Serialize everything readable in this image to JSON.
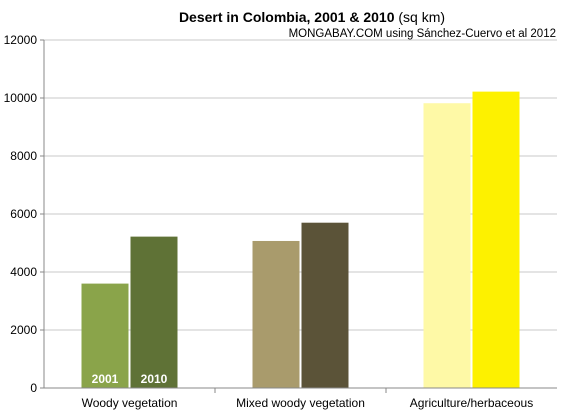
{
  "chart_data": {
    "type": "bar",
    "title_bold": "Desert in Colombia, 2001 & 2010",
    "title_normal": " (sq km)",
    "subtitle": "MONGABAY.COM using Sánchez-Cuervo et al 2012",
    "xlabel": "",
    "ylabel": "",
    "ylim": [
      0,
      12000
    ],
    "yticks": [
      0,
      2000,
      4000,
      6000,
      8000,
      10000,
      12000
    ],
    "grid": true,
    "legend": "none",
    "categories": [
      "Woody vegetation",
      "Mixed woody vegetation",
      "Agriculture/herbaceous"
    ],
    "series": [
      {
        "name": "2001",
        "values": [
          3600,
          5070,
          9820
        ]
      },
      {
        "name": "2010",
        "values": [
          5220,
          5700,
          10220
        ]
      }
    ],
    "bar_colors": [
      [
        "#8aa44a",
        "#5f7236"
      ],
      [
        "#a99b6c",
        "#5b5338"
      ],
      [
        "#fef9a6",
        "#fdf100"
      ]
    ],
    "in_bar_labels": {
      "category_index": 0,
      "labels": [
        "2001",
        "2010"
      ]
    }
  }
}
